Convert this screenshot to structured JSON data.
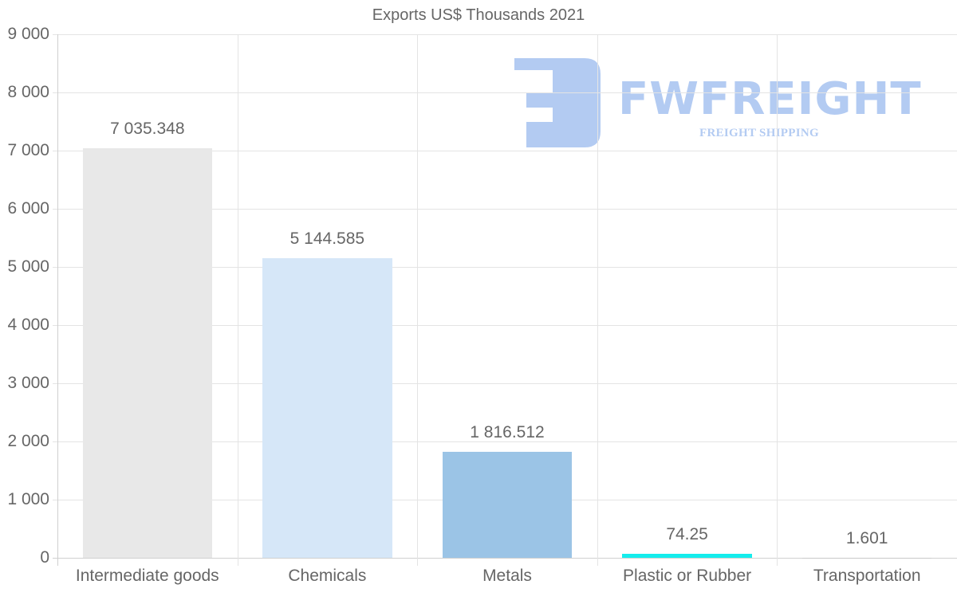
{
  "chart_data": {
    "type": "bar",
    "title": "Exports US$ Thousands 2021",
    "xlabel": "",
    "ylabel": "",
    "categories": [
      "Intermediate goods",
      "Chemicals",
      "Metals",
      "Plastic or Rubber",
      "Transportation"
    ],
    "values": [
      7035.348,
      5144.585,
      1816.512,
      74.25,
      1.601
    ],
    "value_labels": [
      "7 035.348",
      "5 144.585",
      "1 816.512",
      "74.25",
      "1.601"
    ],
    "bar_colors": [
      "#e8e8e8",
      "#d6e7f8",
      "#9bc4e6",
      "#15eded",
      "#c8c8c8"
    ],
    "ylim": [
      0,
      9000
    ],
    "yticks": [
      0,
      1000,
      2000,
      3000,
      4000,
      5000,
      6000,
      7000,
      8000,
      9000
    ],
    "ytick_labels": [
      "0",
      "1 000",
      "2 000",
      "3 000",
      "4 000",
      "5 000",
      "6 000",
      "7 000",
      "8 000",
      "9 000"
    ],
    "grid": true,
    "legend": null
  },
  "watermark": {
    "brand": "FWFREIGHT",
    "tagline": "FREIGHT SHIPPING",
    "color": "#b3cbf2"
  }
}
